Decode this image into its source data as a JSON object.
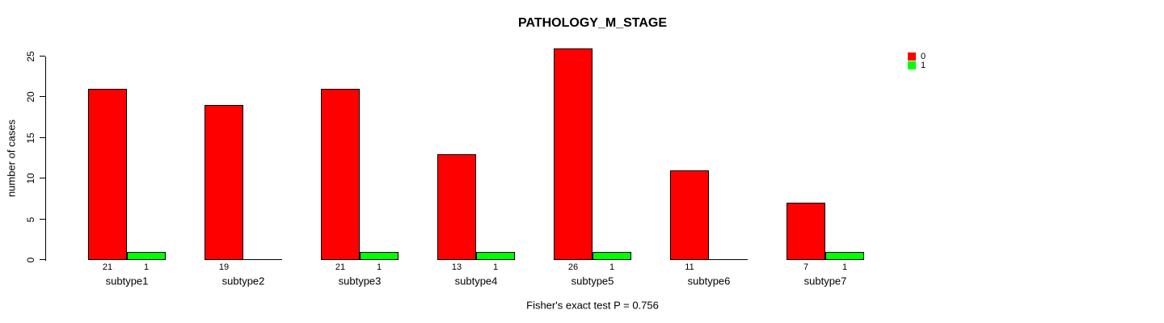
{
  "title": "PATHOLOGY_M_STAGE",
  "annotation": "Fisher's exact test P = 0.756",
  "y_axis_label": "number of cases",
  "colors": {
    "series_0": "#FF0000",
    "series_1": "#00FF00",
    "axis": "#000000",
    "text": "#000000",
    "background": "#FFFFFF"
  },
  "legend": {
    "position": "top-right",
    "entries": [
      {
        "label": "0",
        "color": "#FF0000"
      },
      {
        "label": "1",
        "color": "#00FF00"
      }
    ]
  },
  "chart_data": {
    "type": "bar",
    "title": "PATHOLOGY_M_STAGE",
    "categories": [
      "subtype1",
      "subtype2",
      "subtype3",
      "subtype4",
      "subtype5",
      "subtype6",
      "subtype7"
    ],
    "series": [
      {
        "name": "0",
        "color": "#FF0000",
        "values": [
          21,
          19,
          21,
          13,
          26,
          11,
          7
        ]
      },
      {
        "name": "1",
        "color": "#00FF00",
        "values": [
          1,
          0,
          1,
          1,
          1,
          0,
          1
        ]
      }
    ],
    "xlabel": "",
    "ylabel": "number of cases",
    "ylim": [
      0,
      25
    ],
    "yticks": [
      0,
      5,
      10,
      15,
      20,
      25
    ],
    "bar_value_labels": true,
    "zero_value_labels_hidden": true,
    "grid": false,
    "legend_position": "top-right",
    "annotation": "Fisher's exact test P = 0.756"
  }
}
